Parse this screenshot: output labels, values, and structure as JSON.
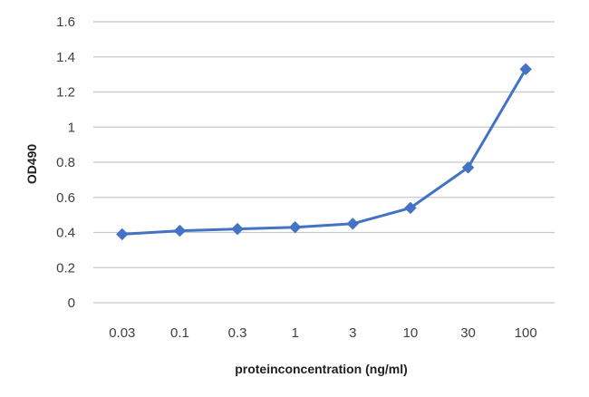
{
  "chart_data": {
    "type": "line",
    "title": "",
    "xlabel": "proteinconcentration (ng/ml)",
    "ylabel": "OD490",
    "categories": [
      "0.03",
      "0.1",
      "0.3",
      "1",
      "3",
      "10",
      "30",
      "100"
    ],
    "series": [
      {
        "values": [
          0.39,
          0.41,
          0.42,
          0.43,
          0.45,
          0.54,
          0.77,
          1.33
        ],
        "color": "#4472C4",
        "marker": "diamond"
      }
    ],
    "ylim": [
      0,
      1.6
    ],
    "yticks": [
      "0",
      "0.2",
      "0.4",
      "0.6",
      "0.8",
      "1",
      "1.2",
      "1.4",
      "1.6"
    ],
    "ytick_values": [
      0,
      0.2,
      0.4,
      0.6,
      0.8,
      1,
      1.2,
      1.4,
      1.6
    ],
    "grid": true,
    "gridline_color": "#C8C8C8"
  }
}
